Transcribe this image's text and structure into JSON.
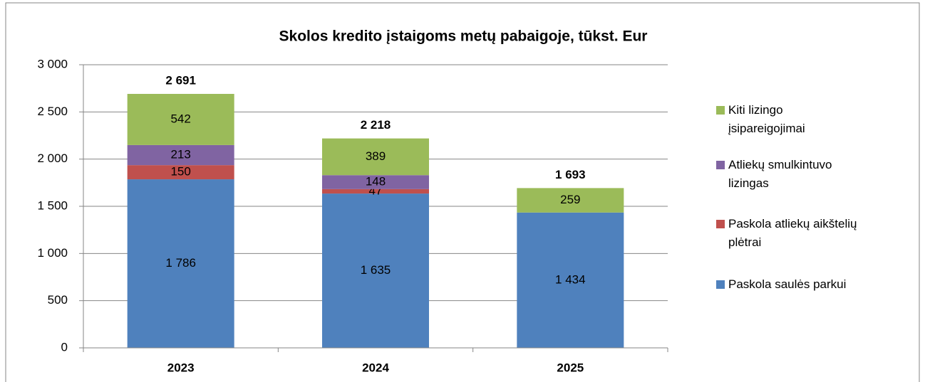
{
  "chart_data": {
    "type": "stacked_bar",
    "title": "Skolos kredito įstaigoms metų pabaigoje, tūkst. Eur",
    "categories": [
      "2023",
      "2024",
      "2025"
    ],
    "series": [
      {
        "name": "Paskola saulės parkui",
        "color": "#4f81bd",
        "values": [
          1786,
          1635,
          1434
        ],
        "value_labels": [
          "1 786",
          "1 635",
          "1 434"
        ]
      },
      {
        "name": "Paskola atliekų aikštelių plėtrai",
        "color": "#c0504d",
        "values": [
          150,
          47,
          null
        ]
      },
      {
        "name": "Atliekų smulkintuvo lizingas",
        "color": "#8064a2",
        "values": [
          213,
          148,
          null
        ]
      },
      {
        "name": "Kiti lizingo įsipareigojimai",
        "color": "#9bbb59",
        "values": [
          542,
          389,
          259
        ]
      }
    ],
    "totals": [
      2691,
      2218,
      1693
    ],
    "total_labels": [
      "2 691",
      "2 218",
      "1 693"
    ],
    "ylim": [
      0,
      3000
    ],
    "yticks": [
      0,
      500,
      {
        "value": 1000,
        "label": "1 000"
      },
      {
        "value": 1500,
        "label": "1 500"
      },
      {
        "value": 2000,
        "label": "2 000"
      },
      {
        "value": 2500,
        "label": "2 500"
      },
      {
        "value": 3000,
        "label": "3 000"
      }
    ],
    "grid": true,
    "legend": "right"
  }
}
